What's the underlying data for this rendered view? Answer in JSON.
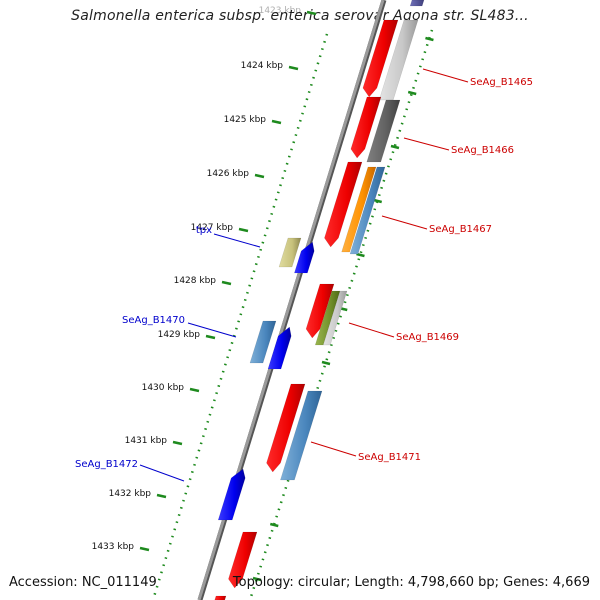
{
  "title": "Salmonella enterica subsp. enterica serovar Agona str. SL483...",
  "footer": {
    "accession": "Accession: NC_011149",
    "summary": "Topology: circular; Length: 4,798,660 bp; Genes: 4,669"
  },
  "colors": {
    "backbone": "#8a8a8a",
    "tick": "#1e8a1e",
    "reverse_label": "#cc0000",
    "forward_label": "#0000cc"
  },
  "ticks": [
    {
      "label": "1423 kbp"
    },
    {
      "label": "1424 kbp"
    },
    {
      "label": "1425 kbp"
    },
    {
      "label": "1426 kbp"
    },
    {
      "label": "1427 kbp"
    },
    {
      "label": "1428 kbp"
    },
    {
      "label": "1429 kbp"
    },
    {
      "label": "1430 kbp"
    },
    {
      "label": "1431 kbp"
    },
    {
      "label": "1432 kbp"
    },
    {
      "label": "1433 kbp"
    }
  ],
  "gene_labels": {
    "reverse": [
      "SeAg_B1465",
      "SeAg_B1466",
      "SeAg_B1467",
      "SeAg_B1469",
      "SeAg_B1471"
    ],
    "forward": [
      "tpx",
      "SeAg_B1470",
      "SeAg_B1472"
    ]
  }
}
